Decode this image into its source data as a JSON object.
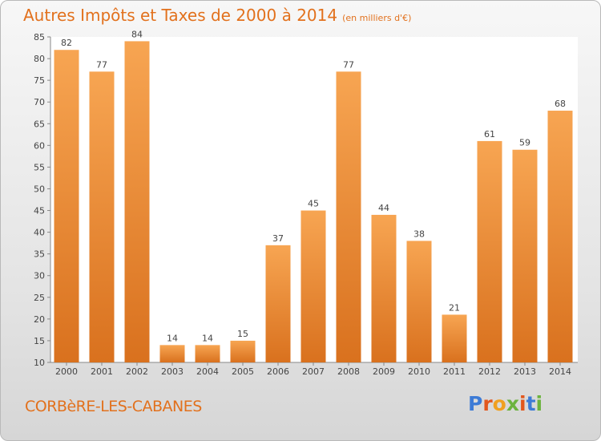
{
  "header": {
    "title": "Autres Impôts et Taxes de 2000 à 2014",
    "subtitle": "(en milliers d'€)"
  },
  "footer": {
    "commune": "CORBèRE-LES-CABANES",
    "logo": "Proxiti"
  },
  "colors": {
    "bar_top": "#f7a552",
    "bar_bottom": "#d9711e",
    "accent": "#e2711d",
    "logo_letters": [
      "#3d7bd6",
      "#e2571d",
      "#f0a020",
      "#6cb33f",
      "#e2571d",
      "#3d7bd6",
      "#6cb33f"
    ]
  },
  "chart_data": {
    "type": "bar",
    "title": "Autres Impôts et Taxes de 2000 à 2014",
    "subtitle": "(en milliers d'€)",
    "xlabel": "",
    "ylabel": "",
    "categories": [
      "2000",
      "2001",
      "2002",
      "2003",
      "2004",
      "2005",
      "2006",
      "2007",
      "2008",
      "2009",
      "2010",
      "2011",
      "2012",
      "2013",
      "2014"
    ],
    "values": [
      82,
      77,
      84,
      14,
      14,
      15,
      37,
      45,
      77,
      44,
      38,
      21,
      61,
      59,
      68
    ],
    "ylim": [
      10,
      85
    ],
    "yticks": [
      10,
      15,
      20,
      25,
      30,
      35,
      40,
      45,
      50,
      55,
      60,
      65,
      70,
      75,
      80,
      85
    ],
    "grid": false,
    "legend": "none"
  }
}
